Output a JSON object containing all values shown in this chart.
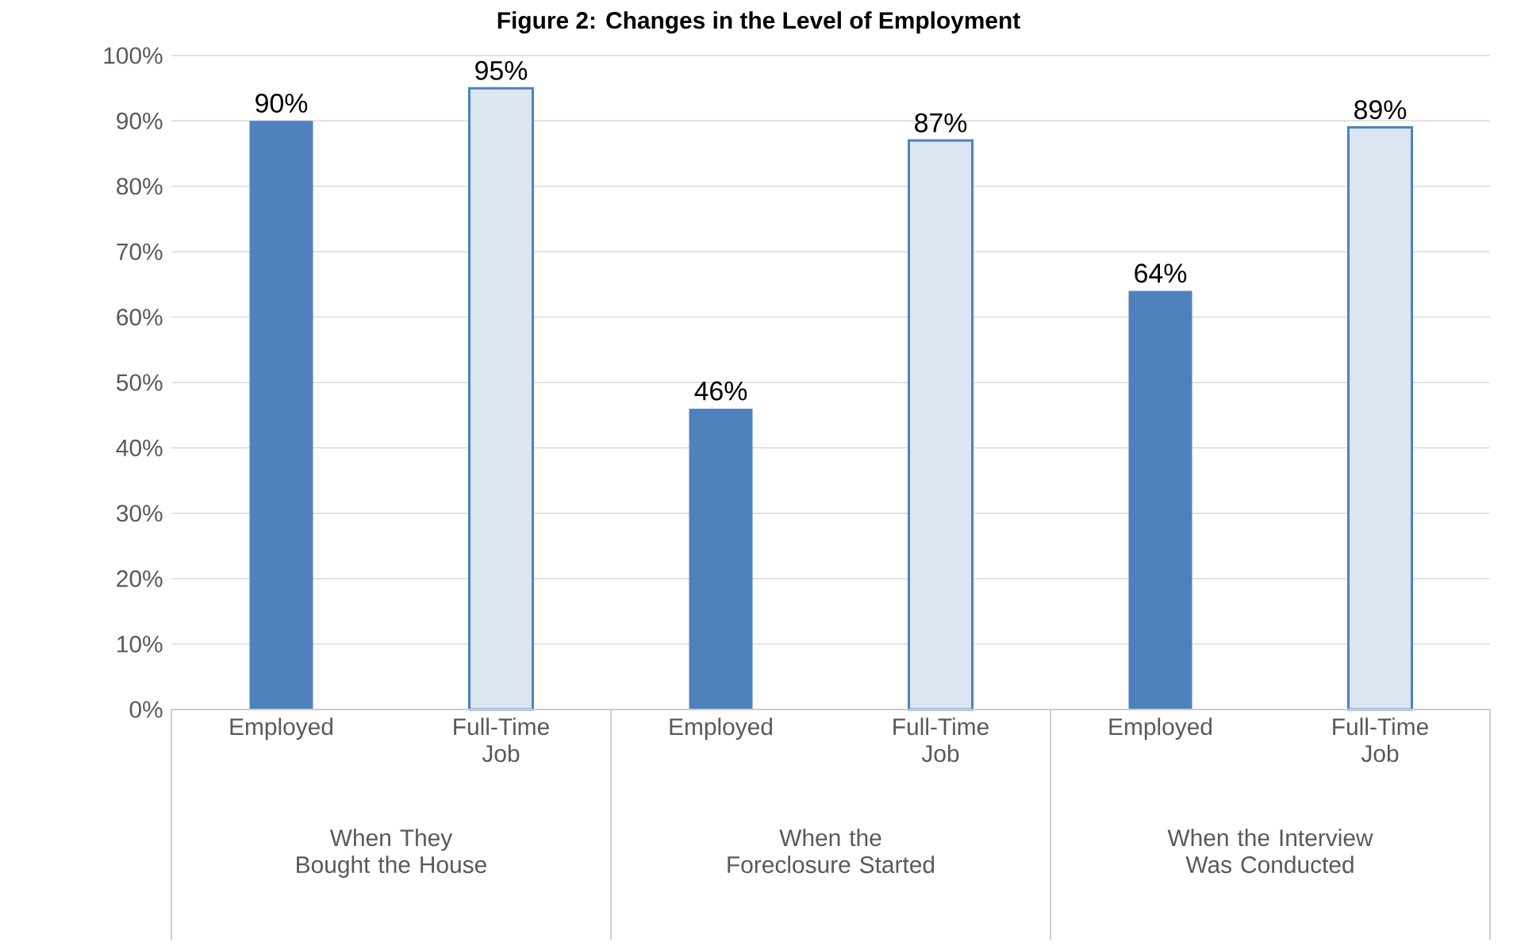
{
  "chart_data": {
    "type": "bar",
    "title": "Figure 2: Changes in the Level of Employment",
    "categories": [
      "When They Bought the House",
      "When the Foreclosure Started",
      "When the Interview Was Conducted"
    ],
    "series": [
      {
        "name": "Employed",
        "color": "#4f81bd",
        "values": [
          90,
          46,
          64
        ],
        "value_labels": [
          "90%",
          "46%",
          "64%"
        ]
      },
      {
        "name": "Full-Time Job",
        "color": "#4f81bd",
        "values": [
          95,
          87,
          89
        ],
        "value_labels": [
          "95%",
          "87%",
          "89%"
        ]
      }
    ],
    "ylim": [
      0,
      100
    ],
    "yticks": [
      {
        "value": 0,
        "label": "0%"
      },
      {
        "value": 10,
        "label": "10%"
      },
      {
        "value": 20,
        "label": "20%"
      },
      {
        "value": 30,
        "label": "30%"
      },
      {
        "value": 40,
        "label": "40%"
      },
      {
        "value": 50,
        "label": "50%"
      },
      {
        "value": 60,
        "label": "60%"
      },
      {
        "value": 70,
        "label": "70%"
      },
      {
        "value": 80,
        "label": "80%"
      },
      {
        "value": 90,
        "label": "90%"
      },
      {
        "value": 100,
        "label": "100%"
      }
    ],
    "grid": "y",
    "legend": false
  }
}
